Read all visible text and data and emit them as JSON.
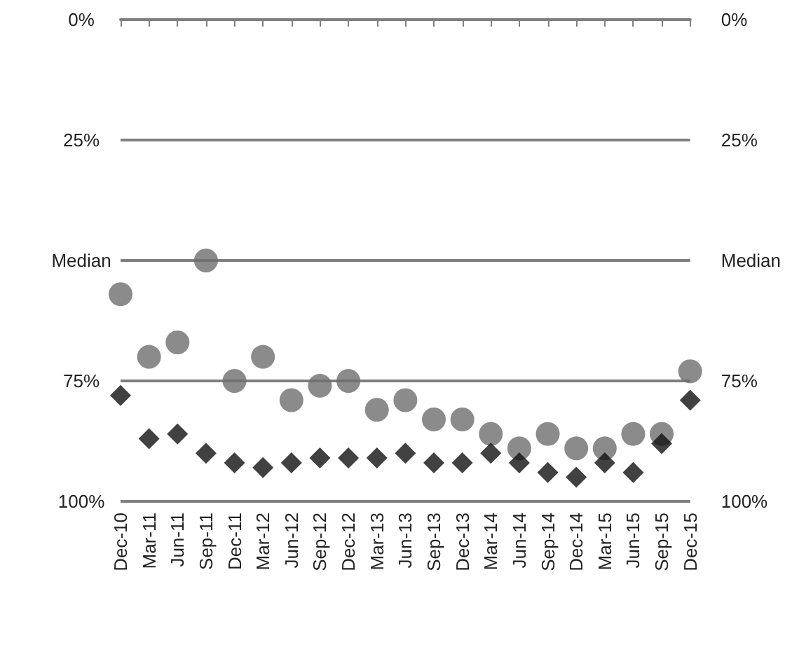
{
  "chart_data": {
    "type": "scatter",
    "categories": [
      "Dec-10",
      "Mar-11",
      "Jun-11",
      "Sep-11",
      "Dec-11",
      "Mar-12",
      "Jun-12",
      "Sep-12",
      "Dec-12",
      "Mar-13",
      "Jun-13",
      "Sep-13",
      "Dec-13",
      "Mar-14",
      "Jun-14",
      "Sep-14",
      "Dec-14",
      "Mar-15",
      "Jun-15",
      "Sep-15",
      "Dec-15"
    ],
    "series": [
      {
        "color": "#6e6e6e",
        "marker": "circle",
        "values": [
          57,
          70,
          67,
          50,
          75,
          70,
          79,
          76,
          75,
          81,
          79,
          83,
          83,
          86,
          89,
          86,
          89,
          89,
          86,
          86,
          73
        ]
      },
      {
        "color": "#111111",
        "marker": "diamond",
        "values": [
          78,
          87,
          86,
          90,
          92,
          93,
          92,
          91,
          91,
          91,
          90,
          92,
          92,
          90,
          92,
          94,
          95,
          92,
          94,
          88,
          79
        ]
      }
    ],
    "ylim": [
      100,
      0
    ],
    "yticks": [
      {
        "value": 0,
        "label": "0%"
      },
      {
        "value": 25,
        "label": "25%"
      },
      {
        "value": 50,
        "label": "Median"
      },
      {
        "value": 75,
        "label": "75%"
      },
      {
        "value": 100,
        "label": "100%"
      }
    ],
    "y2lim": [
      100,
      0
    ],
    "y2ticks": [
      {
        "value": 0,
        "label": "0%"
      },
      {
        "value": 25,
        "label": "25%"
      },
      {
        "value": 50,
        "label": "Median"
      },
      {
        "value": 75,
        "label": "75%"
      },
      {
        "value": 100,
        "label": "100%"
      }
    ],
    "grid": "y"
  }
}
